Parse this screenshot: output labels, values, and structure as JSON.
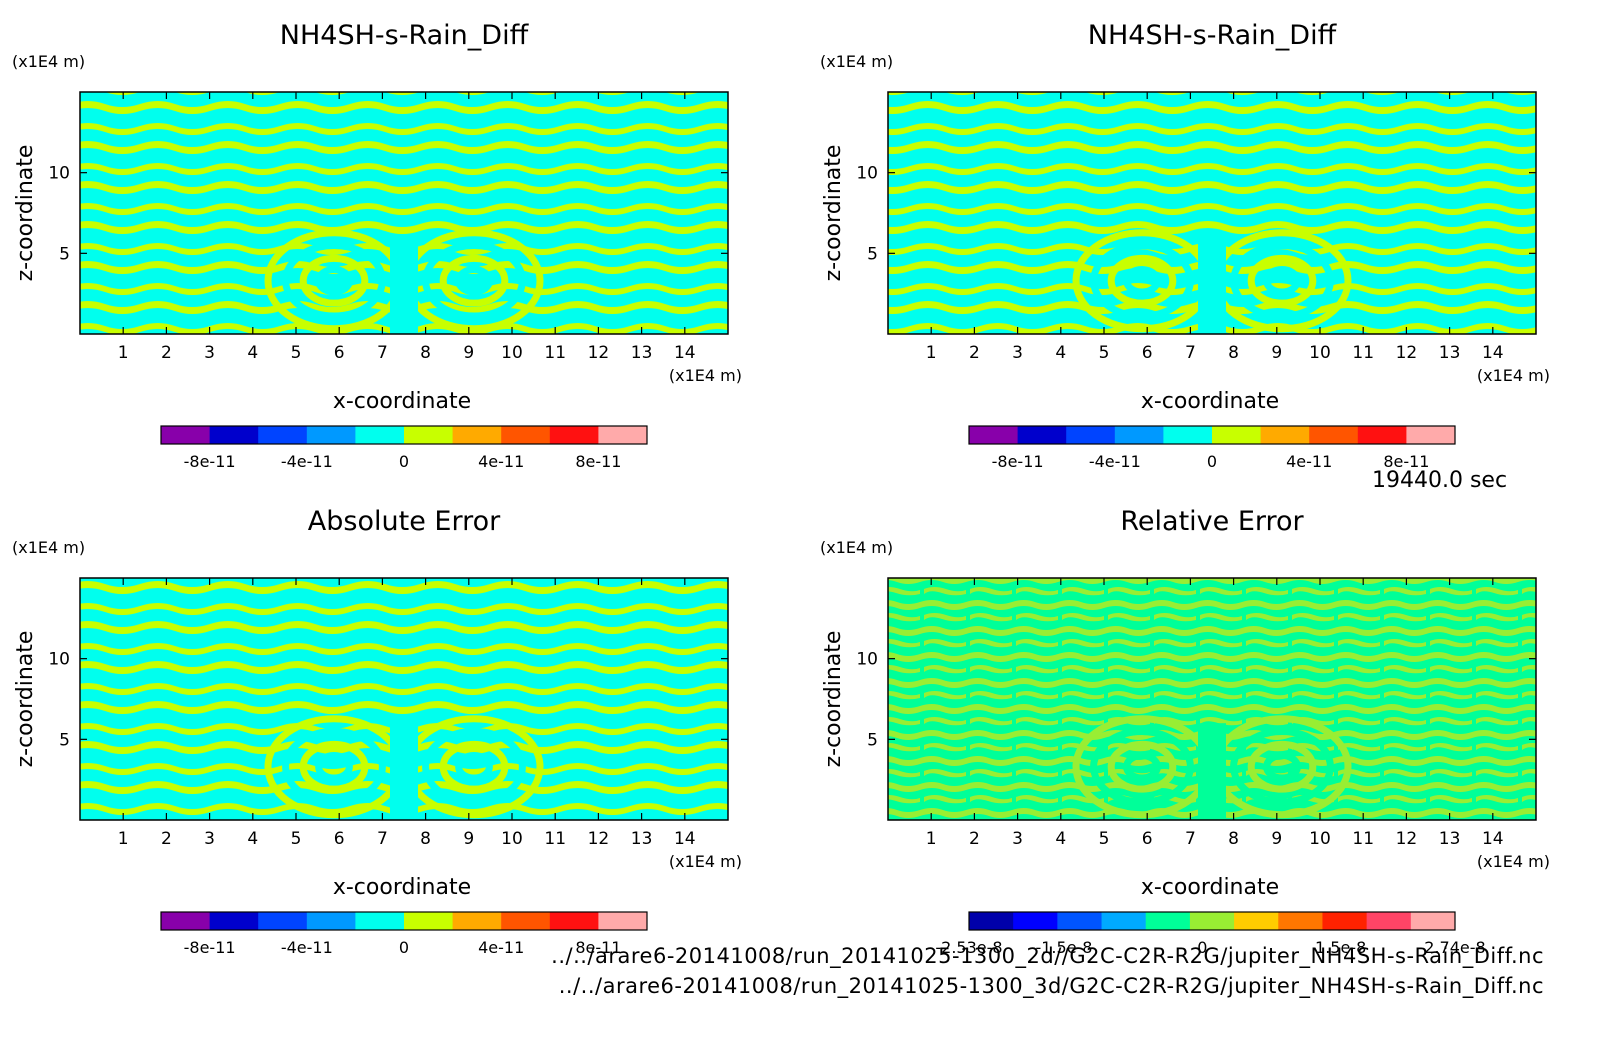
{
  "time_label": "19440.0 sec",
  "file_paths": [
    "../../arare6-20141008/run_20141025-1300_2d//G2C-C2R-R2G/jupiter_NH4SH-s-Rain_Diff.nc",
    "../../arare6-20141008/run_20141025-1300_3d/G2C-C2R-R2G/jupiter_NH4SH-s-Rain_Diff.nc"
  ],
  "colors": {
    "field_light": "#00ffee",
    "field_alt": "#c8ff00",
    "rel_mid": "#00ff99",
    "rel_alt": "#99ee33"
  },
  "chart_data": [
    {
      "type": "heatmap",
      "title": "NH4SH-s-Rain_Diff",
      "xlabel": "x-coordinate",
      "ylabel": "z-coordinate",
      "x_unit": "(x1E4 m)",
      "y_unit": "(x1E4 m)",
      "xlim": [
        0,
        15
      ],
      "ylim": [
        0,
        15
      ],
      "xticks": [
        1,
        2,
        3,
        4,
        5,
        6,
        7,
        8,
        9,
        10,
        11,
        12,
        13,
        14
      ],
      "yticks": [
        5,
        10
      ],
      "colorbar": {
        "colors": [
          "#8800aa",
          "#0000cc",
          "#0044ff",
          "#0099ff",
          "#00ffee",
          "#c8ff00",
          "#ffaa00",
          "#ff5500",
          "#ff1111",
          "#ffaaaa"
        ],
        "tick_labels": [
          "-8e-11",
          "-4e-11",
          "0",
          "4e-11",
          "8e-11"
        ],
        "tick_values": [
          -8e-11,
          -4e-11,
          0,
          4e-11,
          8e-11
        ],
        "range": [
          -1e-10,
          1e-10
        ]
      },
      "dominant_values": [
        0,
        2e-11
      ]
    },
    {
      "type": "heatmap",
      "title": "NH4SH-s-Rain_Diff",
      "xlabel": "x-coordinate",
      "ylabel": "z-coordinate",
      "x_unit": "(x1E4 m)",
      "y_unit": "(x1E4 m)",
      "xlim": [
        0,
        15
      ],
      "ylim": [
        0,
        15
      ],
      "xticks": [
        1,
        2,
        3,
        4,
        5,
        6,
        7,
        8,
        9,
        10,
        11,
        12,
        13,
        14
      ],
      "yticks": [
        5,
        10
      ],
      "colorbar": {
        "colors": [
          "#8800aa",
          "#0000cc",
          "#0044ff",
          "#0099ff",
          "#00ffee",
          "#c8ff00",
          "#ffaa00",
          "#ff5500",
          "#ff1111",
          "#ffaaaa"
        ],
        "tick_labels": [
          "-8e-11",
          "-4e-11",
          "0",
          "4e-11",
          "8e-11"
        ],
        "tick_values": [
          -8e-11,
          -4e-11,
          0,
          4e-11,
          8e-11
        ],
        "range": [
          -1e-10,
          1e-10
        ]
      },
      "dominant_values": [
        0,
        2e-11
      ]
    },
    {
      "type": "heatmap",
      "title": "Absolute Error",
      "xlabel": "x-coordinate",
      "ylabel": "z-coordinate",
      "x_unit": "(x1E4 m)",
      "y_unit": "(x1E4 m)",
      "xlim": [
        0,
        15
      ],
      "ylim": [
        0,
        15
      ],
      "xticks": [
        1,
        2,
        3,
        4,
        5,
        6,
        7,
        8,
        9,
        10,
        11,
        12,
        13,
        14
      ],
      "yticks": [
        5,
        10
      ],
      "colorbar": {
        "colors": [
          "#8800aa",
          "#0000cc",
          "#0044ff",
          "#0099ff",
          "#00ffee",
          "#c8ff00",
          "#ffaa00",
          "#ff5500",
          "#ff1111",
          "#ffaaaa"
        ],
        "tick_labels": [
          "-8e-11",
          "-4e-11",
          "0",
          "4e-11",
          "8e-11"
        ],
        "tick_values": [
          -8e-11,
          -4e-11,
          0,
          4e-11,
          8e-11
        ],
        "range": [
          -1e-10,
          1e-10
        ]
      },
      "dominant_values": [
        0,
        2e-11
      ]
    },
    {
      "type": "heatmap",
      "title": "Relative Error",
      "xlabel": "x-coordinate",
      "ylabel": "z-coordinate",
      "x_unit": "(x1E4 m)",
      "y_unit": "(x1E4 m)",
      "xlim": [
        0,
        15
      ],
      "ylim": [
        0,
        15
      ],
      "xticks": [
        1,
        2,
        3,
        4,
        5,
        6,
        7,
        8,
        9,
        10,
        11,
        12,
        13,
        14
      ],
      "yticks": [
        5,
        10
      ],
      "colorbar": {
        "colors": [
          "#0000aa",
          "#0000ff",
          "#0055ff",
          "#00aaff",
          "#00ff99",
          "#99ee33",
          "#ffcc00",
          "#ff7700",
          "#ff2200",
          "#ff4466",
          "#ffaaaa"
        ],
        "tick_labels": [
          "-2.53e-8",
          "-1.5e-8",
          "0",
          "1.5e-8",
          "2.74e-8"
        ],
        "tick_values": [
          -2.53e-08,
          -1.5e-08,
          0,
          1.5e-08,
          2.74e-08
        ],
        "range": [
          -2.53e-08,
          2.74e-08
        ]
      },
      "dominant_values": [
        0,
        2.5e-09
      ]
    }
  ]
}
